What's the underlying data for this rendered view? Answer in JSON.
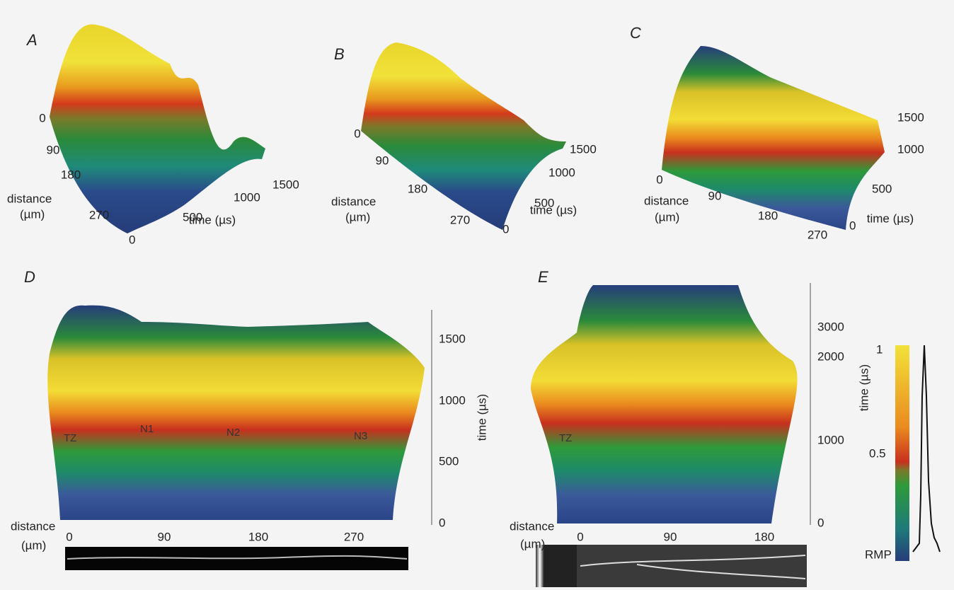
{
  "panels": [
    {
      "label": "A",
      "distance_label": [
        "distance",
        "(µm)"
      ],
      "distance_ticks": [
        0,
        90,
        180,
        270
      ],
      "time_label": "time (µs)",
      "time_ticks": [
        0,
        500,
        1000,
        1500
      ]
    },
    {
      "label": "B",
      "distance_label": [
        "distance",
        "(µm)"
      ],
      "distance_ticks": [
        0,
        90,
        180,
        270
      ],
      "time_label": "time (µs)",
      "time_ticks": [
        0,
        500,
        1000,
        1500
      ]
    },
    {
      "label": "C",
      "distance_label": [
        "distance",
        "(µm)"
      ],
      "distance_ticks": [
        0,
        90,
        180,
        270
      ],
      "time_label": "time (µs)",
      "time_ticks": [
        0,
        500,
        1000,
        1500
      ]
    },
    {
      "label": "D",
      "distance_label": [
        "distance",
        "(µm)"
      ],
      "distance_ticks": [
        0,
        90,
        180,
        270
      ],
      "time_label": "time (µs)",
      "time_ticks": [
        0,
        500,
        1000,
        1500
      ],
      "nodes": [
        "TZ",
        "N1",
        "N2",
        "N3"
      ]
    },
    {
      "label": "E",
      "distance_label": [
        "distance",
        "(µm)"
      ],
      "distance_ticks": [
        0,
        90,
        180
      ],
      "time_label": "time (µs)",
      "time_ticks": [
        0,
        1000,
        2000,
        3000
      ],
      "nodes": [
        "TZ"
      ]
    }
  ],
  "colorbar": {
    "ticks": [
      "1",
      "0.5",
      "RMP"
    ]
  }
}
